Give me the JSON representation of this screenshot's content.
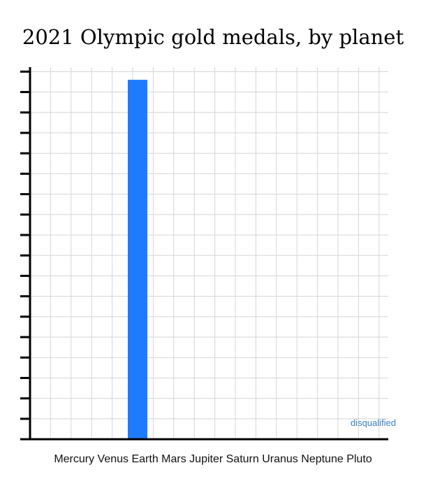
{
  "chart_data": {
    "type": "bar",
    "title": "2021 Olympic gold medals, by planet",
    "xlabel": "",
    "ylabel": "",
    "categories": [
      "Mercury",
      "Venus",
      "Earth",
      "Mars",
      "Jupiter",
      "Saturn",
      "Uranus",
      "Neptune",
      "Pluto"
    ],
    "values": [
      0,
      0,
      17,
      0,
      0,
      0,
      0,
      0,
      0
    ],
    "ylim": [
      0,
      17.6
    ],
    "y_tick_count": 18,
    "y_tick_labels_shown": false,
    "grid": true,
    "legend": "none",
    "annotations": [
      {
        "text": "disqualified",
        "category": "Pluto"
      }
    ],
    "colors": {
      "bar": "#1E7BFF",
      "grid": "#D5D5D5",
      "axis": "#000000",
      "annotation": "#3E7FC1"
    }
  }
}
